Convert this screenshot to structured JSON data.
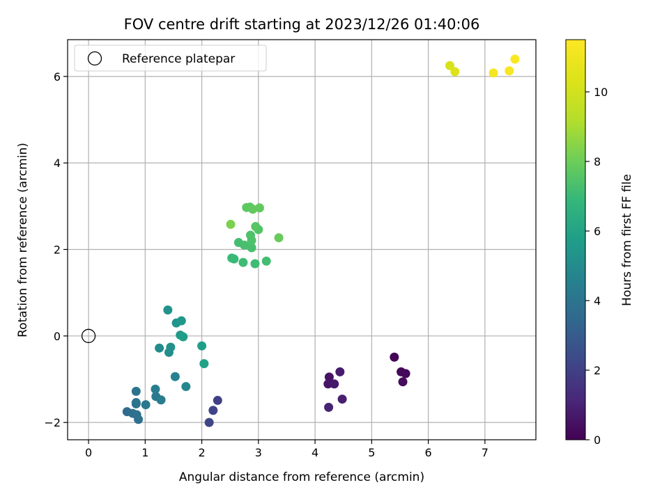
{
  "chart_data": {
    "type": "scatter",
    "title": "FOV centre drift starting at 2023/12/26 01:40:06",
    "xlabel": "Angular distance from reference (arcmin)",
    "ylabel": "Rotation from reference (arcmin)",
    "xlim": [
      -0.37,
      7.9
    ],
    "ylim": [
      -2.4,
      6.85
    ],
    "xticks": [
      0,
      1,
      2,
      3,
      4,
      5,
      6,
      7
    ],
    "yticks": [
      -2,
      0,
      2,
      4,
      6
    ],
    "grid": true,
    "legend": {
      "placement": "top-left",
      "entries": [
        {
          "label": "Reference platepar",
          "marker": "open-circle"
        }
      ]
    },
    "reference_point": {
      "x": 0,
      "y": 0
    },
    "colorbar": {
      "label": "Hours from first FF file",
      "range": [
        0,
        11.5
      ],
      "ticks": [
        0,
        2,
        4,
        6,
        8,
        10
      ],
      "colormap": "viridis"
    },
    "series": [
      {
        "points": [
          {
            "x": 5.4,
            "y": -0.49,
            "c": 0.1
          },
          {
            "x": 5.52,
            "y": -0.83,
            "c": 0.2
          },
          {
            "x": 5.6,
            "y": -0.87,
            "c": 0.2
          },
          {
            "x": 5.55,
            "y": -1.06,
            "c": 0.3
          },
          {
            "x": 4.25,
            "y": -0.95,
            "c": 0.5
          },
          {
            "x": 4.23,
            "y": -1.11,
            "c": 0.6
          },
          {
            "x": 4.34,
            "y": -1.11,
            "c": 0.7
          },
          {
            "x": 4.44,
            "y": -0.83,
            "c": 0.8
          },
          {
            "x": 4.48,
            "y": -1.46,
            "c": 0.9
          },
          {
            "x": 4.24,
            "y": -1.65,
            "c": 1.0
          },
          {
            "x": 2.28,
            "y": -1.49,
            "c": 2.0
          },
          {
            "x": 2.2,
            "y": -1.72,
            "c": 2.1
          },
          {
            "x": 2.13,
            "y": -2.0,
            "c": 2.2
          },
          {
            "x": 0.68,
            "y": -1.75,
            "c": 3.6
          },
          {
            "x": 0.78,
            "y": -1.79,
            "c": 3.7
          },
          {
            "x": 0.85,
            "y": -1.82,
            "c": 3.8
          },
          {
            "x": 0.88,
            "y": -1.93,
            "c": 3.8
          },
          {
            "x": 0.84,
            "y": -1.57,
            "c": 3.9
          },
          {
            "x": 0.84,
            "y": -1.28,
            "c": 4.0
          },
          {
            "x": 0.84,
            "y": -1.54,
            "c": 4.0
          },
          {
            "x": 1.01,
            "y": -1.59,
            "c": 4.1
          },
          {
            "x": 1.19,
            "y": -1.4,
            "c": 4.2
          },
          {
            "x": 1.28,
            "y": -1.48,
            "c": 4.3
          },
          {
            "x": 1.18,
            "y": -1.23,
            "c": 4.4
          },
          {
            "x": 1.53,
            "y": -0.94,
            "c": 4.6
          },
          {
            "x": 1.72,
            "y": -1.17,
            "c": 4.8
          },
          {
            "x": 1.25,
            "y": -0.28,
            "c": 5.0
          },
          {
            "x": 1.42,
            "y": -0.38,
            "c": 5.1
          },
          {
            "x": 1.45,
            "y": -0.26,
            "c": 5.2
          },
          {
            "x": 1.4,
            "y": 0.6,
            "c": 5.3
          },
          {
            "x": 1.55,
            "y": 0.3,
            "c": 5.4
          },
          {
            "x": 1.64,
            "y": 0.35,
            "c": 5.5
          },
          {
            "x": 1.62,
            "y": 0.02,
            "c": 5.6
          },
          {
            "x": 1.67,
            "y": -0.02,
            "c": 5.7
          },
          {
            "x": 2.0,
            "y": -0.23,
            "c": 5.8
          },
          {
            "x": 2.04,
            "y": -0.64,
            "c": 5.9
          },
          {
            "x": 2.53,
            "y": 1.8,
            "c": 7.0
          },
          {
            "x": 2.57,
            "y": 1.78,
            "c": 7.0
          },
          {
            "x": 2.73,
            "y": 1.7,
            "c": 7.1
          },
          {
            "x": 2.94,
            "y": 1.67,
            "c": 7.1
          },
          {
            "x": 3.14,
            "y": 1.73,
            "c": 7.2
          },
          {
            "x": 2.65,
            "y": 2.16,
            "c": 7.2
          },
          {
            "x": 2.75,
            "y": 2.1,
            "c": 7.3
          },
          {
            "x": 2.86,
            "y": 2.07,
            "c": 7.3
          },
          {
            "x": 2.88,
            "y": 2.04,
            "c": 7.3
          },
          {
            "x": 2.88,
            "y": 2.21,
            "c": 7.4
          },
          {
            "x": 2.86,
            "y": 2.33,
            "c": 7.4
          },
          {
            "x": 3.0,
            "y": 2.46,
            "c": 7.5
          },
          {
            "x": 2.95,
            "y": 2.53,
            "c": 7.6
          },
          {
            "x": 2.79,
            "y": 2.97,
            "c": 7.7
          },
          {
            "x": 2.85,
            "y": 2.98,
            "c": 7.7
          },
          {
            "x": 2.9,
            "y": 2.93,
            "c": 7.8
          },
          {
            "x": 3.02,
            "y": 2.96,
            "c": 7.8
          },
          {
            "x": 3.36,
            "y": 2.27,
            "c": 7.9
          },
          {
            "x": 2.51,
            "y": 2.58,
            "c": 8.3
          },
          {
            "x": 6.38,
            "y": 6.25,
            "c": 10.2
          },
          {
            "x": 6.47,
            "y": 6.11,
            "c": 10.4
          },
          {
            "x": 7.15,
            "y": 6.08,
            "c": 11.2
          },
          {
            "x": 7.43,
            "y": 6.13,
            "c": 11.3
          },
          {
            "x": 7.53,
            "y": 6.4,
            "c": 11.4
          }
        ]
      }
    ]
  }
}
